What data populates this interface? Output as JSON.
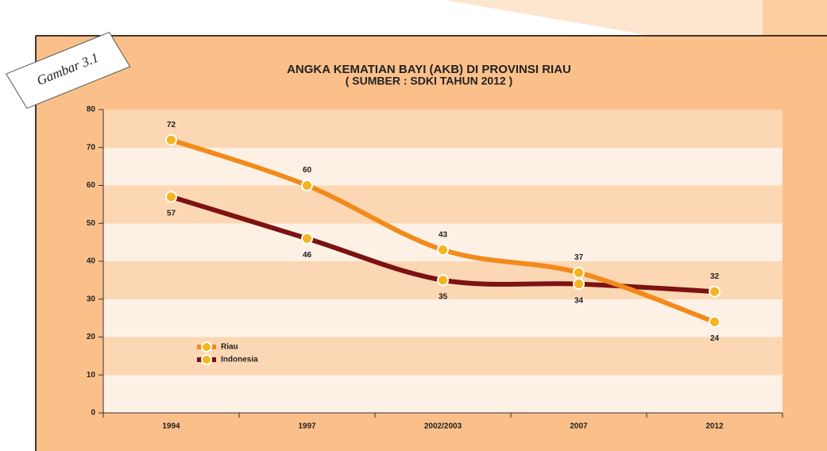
{
  "chart_data": {
    "type": "line",
    "title": "ANGKA KEMATIAN BAYI (AKB) DI PROVINSI RIAU",
    "subtitle": "( SUMBER : SDKI TAHUN 2012 )",
    "annotation": "Gambar 3.1",
    "categories": [
      "1994",
      "1997",
      "2002/2003",
      "2007",
      "2012"
    ],
    "series": [
      {
        "name": "Riau",
        "color": "#f28a1c",
        "values": [
          72,
          60,
          43,
          37,
          24
        ]
      },
      {
        "name": "Indonesia",
        "color": "#7c1212",
        "values": [
          57,
          46,
          35,
          34,
          32
        ]
      }
    ],
    "ylim": [
      0,
      80
    ],
    "yticks": [
      0,
      10,
      20,
      30,
      40,
      50,
      60,
      70,
      80
    ],
    "grid": true,
    "legend": "lower left"
  }
}
